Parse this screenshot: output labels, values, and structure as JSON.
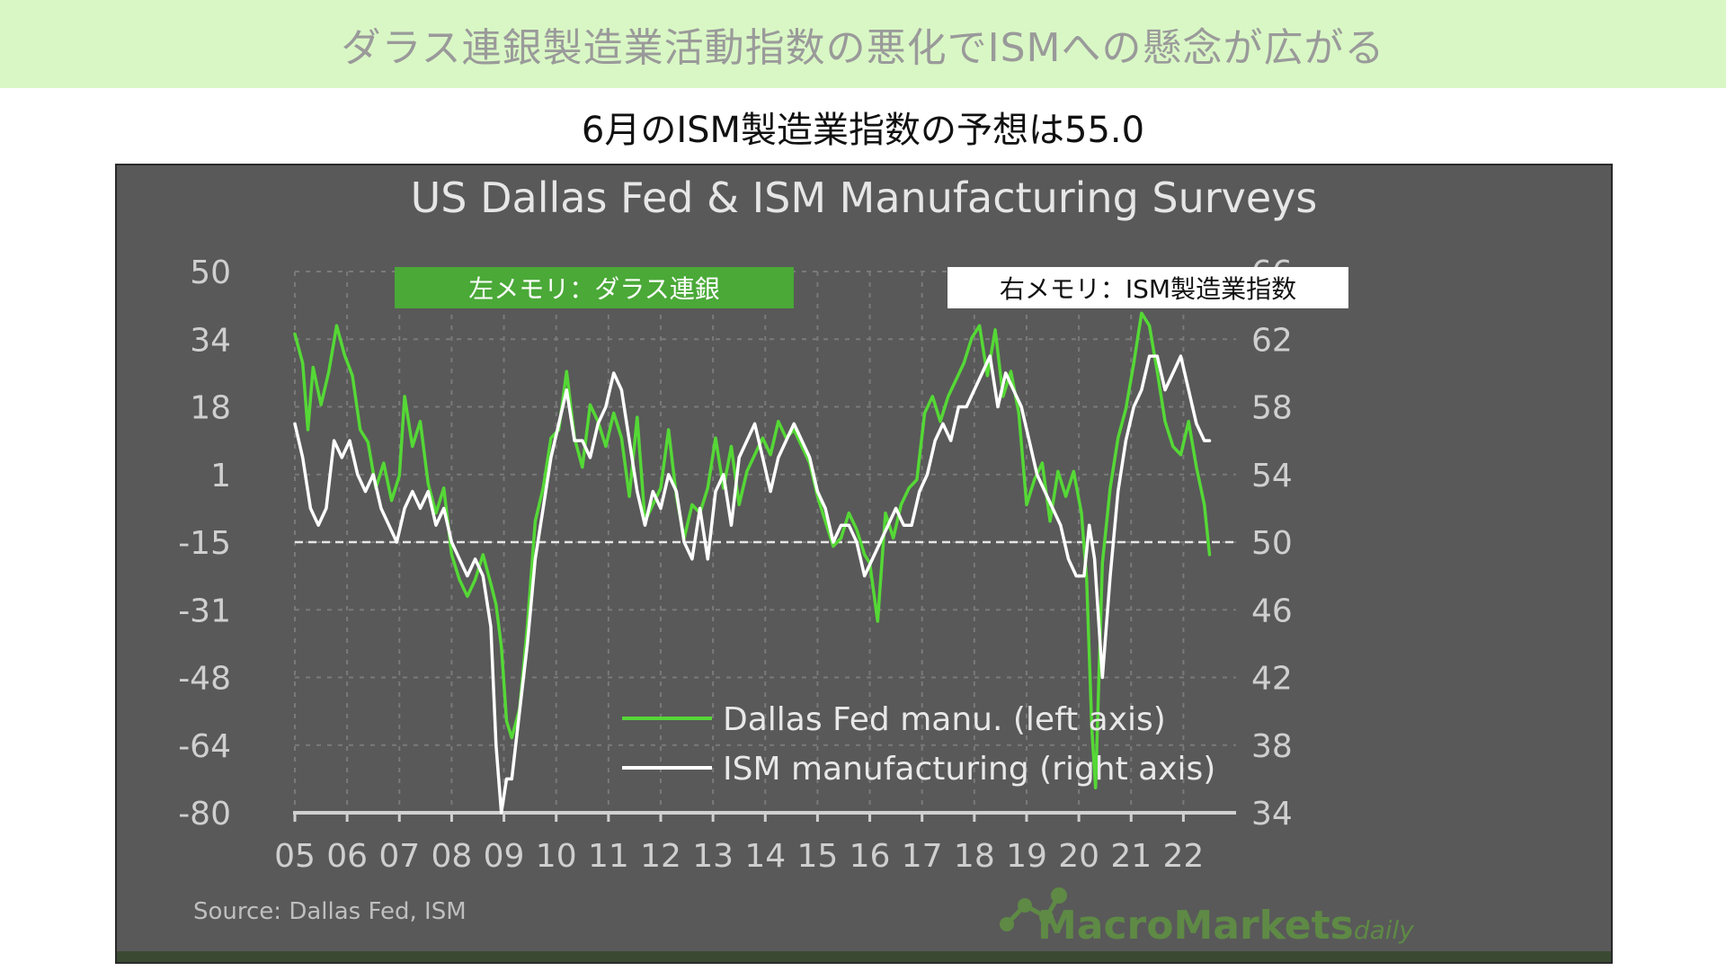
{
  "banner": {
    "title": "ダラス連銀製造業活動指数の悪化でISMへの懸念が広がる"
  },
  "subtitle": "6月のISM製造業指数の予想は55.0",
  "memo": {
    "left": "左メモリ：ダラス連銀",
    "right": "右メモリ：ISM製造業指数"
  },
  "source": "Source:  Dallas  Fed,  ISM",
  "logo": {
    "text_main": "MacroMarkets",
    "text_sub": "daily"
  },
  "colors": {
    "background": "#595959",
    "dallas": "#55d836",
    "ism": "#ffffff",
    "banner": "#d9f7c5"
  },
  "chart_data": {
    "type": "line",
    "title": "US Dallas Fed & ISM Manufacturing Surveys",
    "x_ticks": [
      "05",
      "06",
      "07",
      "08",
      "09",
      "10",
      "11",
      "12",
      "13",
      "14",
      "15",
      "16",
      "17",
      "18",
      "19",
      "20",
      "21",
      "22"
    ],
    "xlim": [
      2005,
      2022.75
    ],
    "left_axis": {
      "ticks": [
        50,
        34,
        18,
        1,
        -15,
        -31,
        -48,
        -64,
        -80
      ],
      "ylim": [
        -80,
        50
      ]
    },
    "right_axis": {
      "ticks": [
        66,
        62,
        58,
        54,
        50,
        46,
        42,
        38,
        34
      ],
      "ylim": [
        34,
        66
      ]
    },
    "reference_line": {
      "axis": "left",
      "value": -15
    },
    "legend_position": "bottom-center",
    "series": [
      {
        "name": "Dallas Fed manu. (left axis)",
        "axis": "left",
        "x": [
          2005,
          2005.15,
          2005.25,
          2005.35,
          2005.5,
          2005.65,
          2005.8,
          2005.95,
          2006.1,
          2006.25,
          2006.4,
          2006.55,
          2006.7,
          2006.85,
          2007,
          2007.1,
          2007.25,
          2007.4,
          2007.55,
          2007.7,
          2007.85,
          2008,
          2008.15,
          2008.3,
          2008.45,
          2008.6,
          2008.75,
          2008.85,
          2008.95,
          2009.05,
          2009.15,
          2009.3,
          2009.45,
          2009.6,
          2009.75,
          2009.9,
          2010.05,
          2010.2,
          2010.35,
          2010.5,
          2010.65,
          2010.8,
          2010.95,
          2011.1,
          2011.25,
          2011.4,
          2011.55,
          2011.7,
          2011.85,
          2012,
          2012.15,
          2012.3,
          2012.45,
          2012.6,
          2012.75,
          2012.9,
          2013.05,
          2013.2,
          2013.35,
          2013.5,
          2013.65,
          2013.8,
          2013.95,
          2014.1,
          2014.25,
          2014.4,
          2014.55,
          2014.7,
          2014.85,
          2015,
          2015.15,
          2015.3,
          2015.45,
          2015.6,
          2015.75,
          2015.9,
          2016,
          2016.15,
          2016.3,
          2016.45,
          2016.6,
          2016.75,
          2016.9,
          2017.05,
          2017.2,
          2017.35,
          2017.5,
          2017.65,
          2017.8,
          2017.95,
          2018.1,
          2018.25,
          2018.4,
          2018.55,
          2018.7,
          2018.85,
          2019,
          2019.15,
          2019.3,
          2019.45,
          2019.6,
          2019.75,
          2019.9,
          2020.05,
          2020.15,
          2020.25,
          2020.32,
          2020.45,
          2020.6,
          2020.75,
          2020.9,
          2021.05,
          2021.2,
          2021.35,
          2021.5,
          2021.65,
          2021.8,
          2021.95,
          2022.1,
          2022.25,
          2022.4,
          2022.5
        ],
        "values": [
          35,
          28,
          12,
          27,
          18,
          26,
          37,
          30,
          25,
          12,
          9,
          -2,
          4,
          -5,
          1,
          20,
          8,
          14,
          -1,
          -8,
          -2,
          -18,
          -24,
          -28,
          -24,
          -18,
          -25,
          -30,
          -40,
          -58,
          -62,
          -55,
          -35,
          -10,
          -2,
          10,
          12,
          26,
          10,
          3,
          18,
          14,
          8,
          16,
          10,
          -4,
          15,
          -10,
          -6,
          -2,
          12,
          -4,
          -14,
          -6,
          -8,
          -2,
          10,
          -2,
          8,
          -6,
          2,
          6,
          10,
          6,
          14,
          10,
          12,
          8,
          4,
          -4,
          -10,
          -16,
          -14,
          -8,
          -12,
          -18,
          -20,
          -34,
          -8,
          -14,
          -6,
          -2,
          0,
          16,
          20,
          14,
          20,
          24,
          28,
          34,
          37,
          25,
          36,
          20,
          26,
          16,
          -6,
          0,
          4,
          -10,
          2,
          -4,
          2,
          -8,
          -24,
          -60,
          -74,
          -20,
          -2,
          10,
          17,
          28,
          40,
          37,
          26,
          14,
          8,
          6,
          14,
          3,
          -6,
          -18
        ]
      },
      {
        "name": "ISM manufacturing (right axis)",
        "axis": "right",
        "x": [
          2005,
          2005.15,
          2005.3,
          2005.45,
          2005.6,
          2005.75,
          2005.9,
          2006.05,
          2006.2,
          2006.35,
          2006.5,
          2006.65,
          2006.8,
          2006.95,
          2007.1,
          2007.25,
          2007.4,
          2007.55,
          2007.7,
          2007.85,
          2008,
          2008.15,
          2008.3,
          2008.45,
          2008.6,
          2008.75,
          2008.85,
          2008.95,
          2009.05,
          2009.15,
          2009.3,
          2009.45,
          2009.6,
          2009.75,
          2009.9,
          2010.05,
          2010.2,
          2010.35,
          2010.5,
          2010.65,
          2010.8,
          2010.95,
          2011.1,
          2011.25,
          2011.4,
          2011.55,
          2011.7,
          2011.85,
          2012,
          2012.15,
          2012.3,
          2012.45,
          2012.6,
          2012.75,
          2012.9,
          2013.05,
          2013.2,
          2013.35,
          2013.5,
          2013.65,
          2013.8,
          2013.95,
          2014.1,
          2014.25,
          2014.4,
          2014.55,
          2014.7,
          2014.85,
          2015,
          2015.15,
          2015.3,
          2015.45,
          2015.6,
          2015.75,
          2015.9,
          2016.05,
          2016.2,
          2016.35,
          2016.5,
          2016.65,
          2016.8,
          2016.95,
          2017.1,
          2017.25,
          2017.4,
          2017.55,
          2017.7,
          2017.85,
          2018,
          2018.15,
          2018.3,
          2018.45,
          2018.6,
          2018.75,
          2018.9,
          2019.05,
          2019.2,
          2019.35,
          2019.5,
          2019.65,
          2019.8,
          2019.95,
          2020.1,
          2020.2,
          2020.3,
          2020.45,
          2020.6,
          2020.75,
          2020.9,
          2021.05,
          2021.2,
          2021.35,
          2021.5,
          2021.65,
          2021.8,
          2021.95,
          2022.1,
          2022.25,
          2022.4,
          2022.5
        ],
        "values": [
          57,
          55,
          52,
          51,
          52,
          56,
          55,
          56,
          54,
          53,
          54,
          52,
          51,
          50,
          52,
          53,
          52,
          53,
          51,
          52,
          50,
          49,
          48,
          49,
          48,
          45,
          38,
          34,
          36,
          36,
          40,
          44,
          49,
          52,
          55,
          57,
          59,
          56,
          56,
          55,
          57,
          58,
          60,
          59,
          56,
          53,
          51,
          53,
          52,
          54,
          53,
          50,
          49,
          52,
          49,
          53,
          54,
          51,
          55,
          56,
          57,
          55,
          53,
          55,
          56,
          57,
          56,
          55,
          53,
          52,
          50,
          51,
          51,
          50,
          48,
          49,
          50,
          51,
          52,
          51,
          51,
          53,
          54,
          56,
          57,
          56,
          58,
          58,
          59,
          60,
          61,
          58,
          60,
          59,
          58,
          56,
          54,
          53,
          52,
          51,
          49,
          48,
          48,
          51,
          49,
          42,
          48,
          53,
          56,
          58,
          59,
          61,
          61,
          59,
          60,
          61,
          59,
          57,
          56,
          56
        ]
      }
    ]
  }
}
